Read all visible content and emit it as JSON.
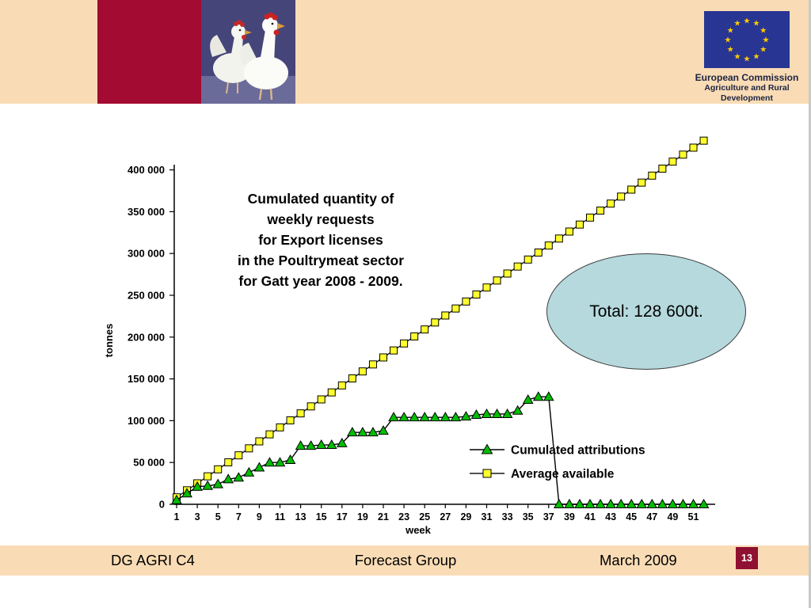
{
  "slide": {
    "banner": {
      "eu_logo_line1": "European Commission",
      "eu_logo_line2": "Agriculture and Rural Development"
    },
    "annotation_total": "Total: 128 600t.",
    "footer": {
      "left": "DG AGRI C4",
      "center": "Forecast Group",
      "right": "March 2009",
      "page_number": "13"
    }
  },
  "chart_data": {
    "type": "line",
    "title_lines": [
      "Cumulated quantity of",
      "weekly requests",
      "for Export licenses",
      "in the Poultrymeat sector",
      "for Gatt year 2008 - 2009."
    ],
    "ylabel": "tonnes",
    "xlabel": "week",
    "ylim": [
      0,
      400000
    ],
    "ytick_values": [
      0,
      50000,
      100000,
      150000,
      200000,
      250000,
      300000,
      350000,
      400000
    ],
    "yticks": [
      "0",
      "50 000",
      "100 000",
      "150 000",
      "200 000",
      "250 000",
      "300 000",
      "350 000",
      "400 000"
    ],
    "xticks": [
      1,
      3,
      5,
      7,
      9,
      11,
      13,
      15,
      17,
      19,
      21,
      23,
      25,
      27,
      29,
      31,
      33,
      35,
      37,
      39,
      41,
      43,
      45,
      47,
      49,
      51
    ],
    "x_weeks": 52,
    "grid": false,
    "legend_position": "lower-right-inside",
    "series": [
      {
        "name": "Cumulated attributions",
        "marker": "triangle",
        "marker_fill": "#00BE00",
        "line_color": "#000000",
        "values": [
          5000,
          13000,
          21000,
          22000,
          24000,
          30000,
          32000,
          38000,
          44000,
          50000,
          50000,
          53000,
          70000,
          70000,
          71000,
          71000,
          73000,
          86000,
          86000,
          86000,
          88000,
          104000,
          104000,
          104000,
          104000,
          104000,
          104000,
          104000,
          105000,
          107000,
          108000,
          108000,
          108000,
          112000,
          125000,
          128600,
          128600,
          0,
          0,
          0,
          0,
          0,
          0,
          0,
          0,
          0,
          0,
          0,
          0,
          0,
          0,
          0
        ]
      },
      {
        "name": "Average available",
        "marker": "square",
        "marker_fill": "#FFFF2E",
        "line_color": "#1a1a1a",
        "values": [
          8365,
          16730,
          25095,
          33460,
          41825,
          50190,
          58555,
          66920,
          75285,
          83650,
          92015,
          100380,
          108745,
          117110,
          125475,
          133840,
          142205,
          150570,
          158935,
          167300,
          175665,
          184030,
          192395,
          200760,
          209125,
          217490,
          225855,
          234220,
          242585,
          250950,
          259315,
          267680,
          276045,
          284410,
          292775,
          301140,
          309505,
          317870,
          326235,
          334600,
          342965,
          351330,
          359695,
          368060,
          376425,
          384790,
          393155,
          401520,
          409885,
          418250,
          426615,
          434980
        ]
      }
    ]
  },
  "colors": {
    "banner_bg": "#F9DCB5",
    "accent_red": "#A30B32",
    "page_badge_red": "#8F1030",
    "ellipse_fill": "#B5D9DD",
    "eu_flag_blue": "#283593",
    "eu_star_yellow": "#FFCC00",
    "triangle_green": "#00BE00",
    "square_yellow": "#FFFF2E"
  }
}
